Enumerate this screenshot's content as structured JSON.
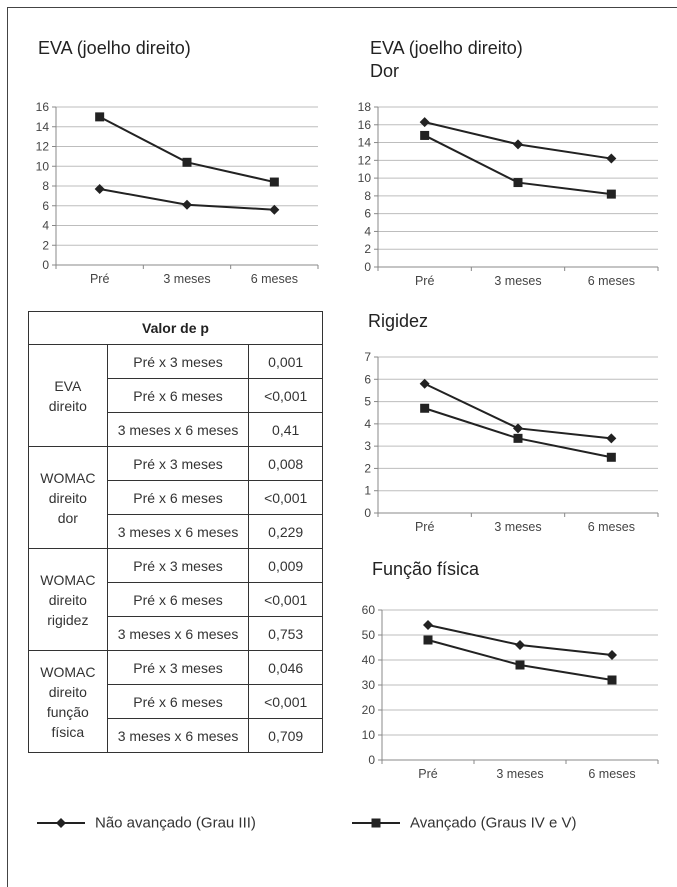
{
  "chart_data": [
    {
      "type": "line",
      "title": "EVA (joelho direito)",
      "categories": [
        "Pré",
        "3 meses",
        "6 meses"
      ],
      "ylim": [
        0,
        16
      ],
      "yticks": [
        0,
        2,
        4,
        6,
        8,
        10,
        12,
        14,
        16
      ],
      "grid": true,
      "series": [
        {
          "name": "Não avançado (Grau III)",
          "marker": "diamond",
          "values": [
            7.7,
            6.1,
            5.6
          ]
        },
        {
          "name": "Avançado (Graus IV e V)",
          "marker": "square",
          "values": [
            15.0,
            10.4,
            8.4
          ]
        }
      ]
    },
    {
      "type": "line",
      "title": "EVA (joelho direito)",
      "subtitle": "Dor",
      "categories": [
        "Pré",
        "3 meses",
        "6 meses"
      ],
      "ylim": [
        0,
        18
      ],
      "yticks": [
        0,
        2,
        4,
        6,
        8,
        10,
        12,
        14,
        16,
        18
      ],
      "grid": true,
      "series": [
        {
          "name": "Não avançado (Grau III)",
          "marker": "diamond",
          "values": [
            16.3,
            13.8,
            12.2
          ]
        },
        {
          "name": "Avançado (Graus IV e V)",
          "marker": "square",
          "values": [
            14.8,
            9.5,
            8.2
          ]
        }
      ]
    },
    {
      "type": "line",
      "title": "Rigidez",
      "categories": [
        "Pré",
        "3 meses",
        "6 meses"
      ],
      "ylim": [
        0,
        7
      ],
      "yticks": [
        0,
        1,
        2,
        3,
        4,
        5,
        6,
        7
      ],
      "grid": true,
      "series": [
        {
          "name": "Não avançado (Grau III)",
          "marker": "diamond",
          "values": [
            5.8,
            3.8,
            3.35
          ]
        },
        {
          "name": "Avançado (Graus IV e V)",
          "marker": "square",
          "values": [
            4.7,
            3.35,
            2.5
          ]
        }
      ]
    },
    {
      "type": "line",
      "title": "Função física",
      "categories": [
        "Pré",
        "3 meses",
        "6 meses"
      ],
      "ylim": [
        0,
        60
      ],
      "yticks": [
        0,
        10,
        20,
        30,
        40,
        50,
        60
      ],
      "grid": true,
      "series": [
        {
          "name": "Não avançado (Grau III)",
          "marker": "diamond",
          "values": [
            54,
            46,
            42
          ]
        },
        {
          "name": "Avançado (Graus IV e V)",
          "marker": "square",
          "values": [
            48,
            38,
            32
          ]
        }
      ]
    }
  ],
  "table": {
    "header": "Valor de p",
    "groups": [
      {
        "label": "EVA\ndireito",
        "rows": [
          [
            "Pré x 3 meses",
            "0,001"
          ],
          [
            "Pré x 6 meses",
            "<0,001"
          ],
          [
            "3 meses x 6 meses",
            "0,41"
          ]
        ]
      },
      {
        "label": "WOMAC\ndireito\ndor",
        "rows": [
          [
            "Pré x 3 meses",
            "0,008"
          ],
          [
            "Pré x 6 meses",
            "<0,001"
          ],
          [
            "3 meses x 6 meses",
            "0,229"
          ]
        ]
      },
      {
        "label": "WOMAC\ndireito\nrigidez",
        "rows": [
          [
            "Pré x 3 meses",
            "0,009"
          ],
          [
            "Pré x 6 meses",
            "<0,001"
          ],
          [
            "3 meses x 6 meses",
            "0,753"
          ]
        ]
      },
      {
        "label": "WOMAC\ndireito\nfunção\nfísica",
        "rows": [
          [
            "Pré x 3 meses",
            "0,046"
          ],
          [
            "Pré x 6 meses",
            "<0,001"
          ],
          [
            "3 meses x 6 meses",
            "0,709"
          ]
        ]
      }
    ]
  },
  "legend": {
    "items": [
      {
        "label": "Não avançado (Grau III)",
        "marker": "diamond"
      },
      {
        "label": "Avançado (Graus IV e V)",
        "marker": "square"
      }
    ]
  },
  "colors": {
    "line": "#222222",
    "grid": "#bdbdbd",
    "axis": "#888888",
    "border": "#333333"
  }
}
